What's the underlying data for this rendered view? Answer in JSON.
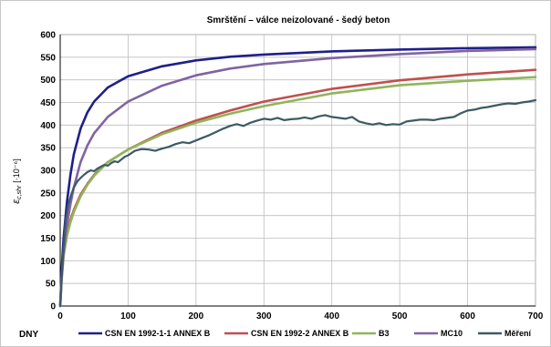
{
  "chart_data": {
    "type": "line",
    "title": "Smrštění – válce neizolované - šedý beton",
    "xlabel": "DNY",
    "ylabel_symbol": "ε",
    "ylabel_subscript": "c,shr",
    "ylabel_unit": "[·10⁻⁶]",
    "xlim": [
      0,
      700
    ],
    "ylim": [
      0,
      600
    ],
    "xticks": [
      0,
      100,
      200,
      300,
      400,
      500,
      600,
      700
    ],
    "yticks": [
      0,
      50,
      100,
      150,
      200,
      250,
      300,
      350,
      400,
      450,
      500,
      550,
      600
    ],
    "grid": true,
    "legend_position": "bottom",
    "series": [
      {
        "name": "CSN EN 1992-1-1 ANNEX B",
        "color": "#1f1f8c",
        "x": [
          0,
          2,
          5,
          10,
          15,
          20,
          30,
          40,
          50,
          70,
          100,
          150,
          200,
          250,
          300,
          400,
          500,
          600,
          700
        ],
        "values": [
          0,
          75,
          150,
          230,
          290,
          335,
          392,
          428,
          452,
          483,
          508,
          530,
          543,
          551,
          556,
          563,
          567,
          570,
          572
        ]
      },
      {
        "name": "CSN EN 1992-2 ANNEX B",
        "color": "#c0504d",
        "x": [
          0,
          2,
          5,
          10,
          15,
          20,
          30,
          40,
          50,
          70,
          100,
          150,
          200,
          250,
          300,
          400,
          500,
          600,
          700
        ],
        "values": [
          0,
          60,
          115,
          160,
          190,
          212,
          246,
          270,
          290,
          318,
          346,
          383,
          410,
          432,
          452,
          480,
          499,
          512,
          522
        ]
      },
      {
        "name": "B3",
        "color": "#8fb55a",
        "x": [
          0,
          2,
          5,
          10,
          15,
          20,
          30,
          40,
          50,
          70,
          100,
          150,
          200,
          250,
          300,
          400,
          500,
          600,
          700
        ],
        "values": [
          0,
          55,
          110,
          155,
          185,
          208,
          242,
          268,
          288,
          318,
          346,
          380,
          405,
          425,
          442,
          470,
          488,
          498,
          506
        ]
      },
      {
        "name": "MC10",
        "color": "#8064a2",
        "x": [
          0,
          2,
          5,
          10,
          15,
          20,
          30,
          40,
          50,
          70,
          100,
          150,
          200,
          250,
          300,
          400,
          500,
          600,
          700
        ],
        "values": [
          0,
          60,
          120,
          180,
          225,
          262,
          318,
          355,
          382,
          418,
          452,
          487,
          510,
          525,
          535,
          548,
          557,
          564,
          568
        ]
      },
      {
        "name": "Měření",
        "color": "#3c5a66",
        "x": [
          0,
          2,
          5,
          8,
          12,
          16,
          20,
          25,
          30,
          35,
          40,
          45,
          50,
          55,
          60,
          65,
          70,
          75,
          80,
          85,
          90,
          95,
          100,
          110,
          120,
          130,
          140,
          150,
          160,
          170,
          180,
          190,
          200,
          210,
          220,
          230,
          240,
          250,
          260,
          270,
          280,
          290,
          300,
          310,
          320,
          330,
          340,
          350,
          360,
          370,
          380,
          390,
          400,
          410,
          420,
          430,
          440,
          450,
          460,
          470,
          480,
          490,
          500,
          510,
          520,
          530,
          540,
          550,
          560,
          570,
          580,
          590,
          600,
          610,
          620,
          630,
          640,
          650,
          660,
          670,
          680,
          690,
          700
        ],
        "values": [
          0,
          60,
          130,
          190,
          225,
          245,
          262,
          275,
          283,
          290,
          296,
          300,
          298,
          304,
          308,
          312,
          310,
          316,
          320,
          318,
          324,
          330,
          333,
          343,
          347,
          346,
          343,
          348,
          352,
          358,
          362,
          360,
          366,
          372,
          378,
          385,
          392,
          398,
          402,
          398,
          405,
          410,
          414,
          412,
          416,
          411,
          413,
          414,
          417,
          414,
          419,
          422,
          418,
          416,
          414,
          418,
          408,
          404,
          401,
          404,
          400,
          402,
          401,
          408,
          410,
          412,
          412,
          411,
          414,
          416,
          418,
          426,
          432,
          434,
          438,
          440,
          443,
          446,
          448,
          447,
          450,
          452,
          455
        ]
      }
    ]
  }
}
